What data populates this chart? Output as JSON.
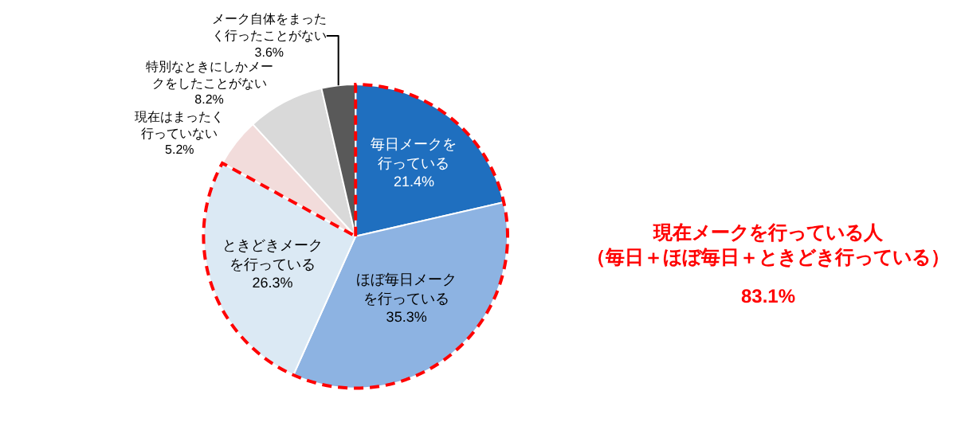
{
  "chart_data": {
    "type": "pie",
    "categories": [
      "毎日メークを行っている",
      "ほぼ毎日メークを行っている",
      "ときどきメークを行っている",
      "現在はまったく行っていない",
      "特別なときにしかメークをしたことがない",
      "メーク自体をまったく行ったことがない"
    ],
    "values": [
      21.4,
      35.3,
      26.3,
      5.2,
      8.2,
      3.6
    ],
    "colors": [
      "#1f6fbf",
      "#8db3e2",
      "#dbe9f4",
      "#f2dcdb",
      "#d9d9d9",
      "#595959"
    ],
    "value_labels": [
      "21.4%",
      "35.3%",
      "26.3%",
      "5.2%",
      "8.2%",
      "3.6%"
    ],
    "annotations": [
      "現在メークを行っている人（毎日＋ほぼ毎日＋ときどき行っている）",
      "83.1%"
    ],
    "legend": false
  }
}
